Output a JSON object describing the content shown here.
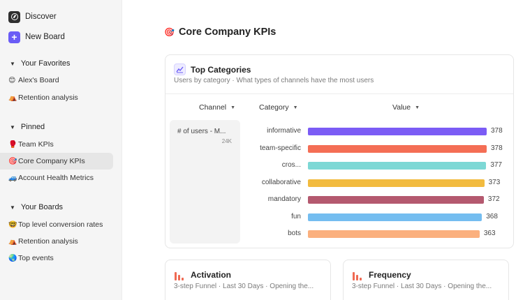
{
  "sidebar": {
    "discover": {
      "label": "Discover",
      "icon": "compass-icon"
    },
    "new_board": {
      "label": "New Board",
      "icon": "plus-icon"
    },
    "sections": [
      {
        "title": "Your Favorites",
        "items": [
          {
            "emoji": "😊",
            "label": "Alex's Board"
          },
          {
            "emoji": "⛺",
            "label": "Retention analysis"
          }
        ]
      },
      {
        "title": "Pinned",
        "items": [
          {
            "emoji": "🥊",
            "label": "Team KPIs"
          },
          {
            "emoji": "🎯",
            "label": "Core Company KPIs",
            "active": true
          },
          {
            "emoji": "🚙",
            "label": "Account Health Metrics"
          }
        ]
      },
      {
        "title": "Your Boards",
        "items": [
          {
            "emoji": "🤓",
            "label": "Top level conversion rates"
          },
          {
            "emoji": "⛺",
            "label": "Retention analysis"
          },
          {
            "emoji": "🌏",
            "label": "Top events"
          }
        ]
      }
    ]
  },
  "page": {
    "emoji": "🎯",
    "title": "Core Company KPIs"
  },
  "top_categories": {
    "title": "Top Categories",
    "subtitle": "Users by category · What types of channels have the most users",
    "columns": [
      "Channel",
      "Category",
      "Value"
    ],
    "channel": {
      "label": "# of users - M...",
      "value": "24K"
    }
  },
  "chart_data": {
    "type": "bar",
    "orientation": "horizontal",
    "categories": [
      "informative",
      "team-specific",
      "cros...",
      "collaborative",
      "mandatory",
      "fun",
      "bots"
    ],
    "values": [
      378,
      378,
      377,
      373,
      372,
      368,
      363
    ],
    "colors": [
      "#7b5cf5",
      "#f46e55",
      "#7dd8d5",
      "#f2bb3f",
      "#b4596f",
      "#74bdf0",
      "#fbb07e"
    ],
    "xlim": [
      0,
      378
    ]
  },
  "cards": [
    {
      "title": "Activation",
      "subtitle": "3-step Funnel · Last 30 Days · Opening the..."
    },
    {
      "title": "Frequency",
      "subtitle": "3-step Funnel · Last 30 Days · Opening the..."
    }
  ]
}
